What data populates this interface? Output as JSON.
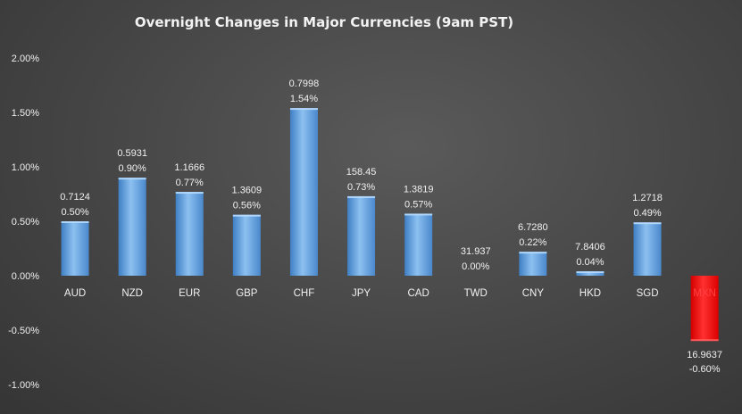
{
  "chart_data": {
    "type": "bar",
    "title": "Overnight Changes in Major Currencies (9am PST)",
    "xlabel": "",
    "ylabel": "",
    "ylim": [
      -0.01,
      0.02
    ],
    "yticks": [
      "2.00%",
      "1.50%",
      "1.00%",
      "0.50%",
      "0.00%",
      "-0.50%",
      "-1.00%"
    ],
    "categories": [
      "AUD",
      "NZD",
      "EUR",
      "GBP",
      "CHF",
      "JPY",
      "CAD",
      "TWD",
      "CNY",
      "HKD",
      "SGD",
      "MXN"
    ],
    "values": [
      0.005,
      0.009,
      0.0077,
      0.0056,
      0.0154,
      0.0073,
      0.0057,
      0.0,
      0.0022,
      0.0004,
      0.0049,
      -0.006
    ],
    "rates": [
      "0.7124",
      "0.5931",
      "1.1666",
      "1.3609",
      "0.7998",
      "158.45",
      "1.3819",
      "31.937",
      "6.7280",
      "7.8406",
      "1.2718",
      "16.9637"
    ],
    "pct_labels": [
      "0.50%",
      "0.90%",
      "0.77%",
      "0.56%",
      "1.54%",
      "0.73%",
      "0.57%",
      "0.00%",
      "0.22%",
      "0.04%",
      "0.49%",
      "-0.60%"
    ],
    "grid": false,
    "colors": {
      "positive": "#5b9bd5",
      "negative": "#ff0000",
      "text": "#f0f0f0"
    }
  }
}
